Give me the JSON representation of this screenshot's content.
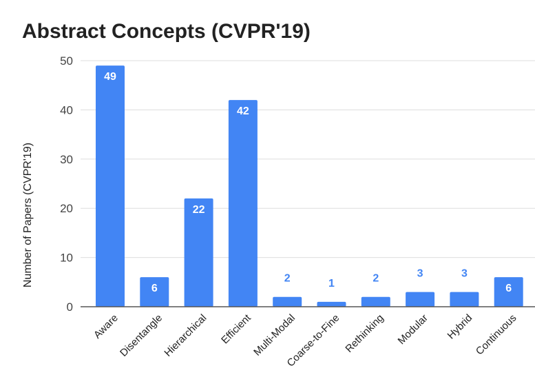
{
  "chart_data": {
    "type": "bar",
    "title": "Abstract Concepts (CVPR'19)",
    "xlabel": "",
    "ylabel": "Number of Papers (CVPR'19)",
    "ylim": [
      0,
      50
    ],
    "yticks": [
      "0",
      "10",
      "20",
      "30",
      "40",
      "50"
    ],
    "categories": [
      "Aware",
      "Disentangle",
      "Hierarchical",
      "Efficient",
      "Multi-Modal",
      "Coarse-to-Fine",
      "Rethinking",
      "Modular",
      "Hybrid",
      "Continuous"
    ],
    "values": [
      49,
      6,
      22,
      42,
      2,
      1,
      2,
      3,
      3,
      6
    ],
    "grid": true,
    "bar_color": "#4285f4",
    "label_color_inside": "#ffffff",
    "label_color_outside": "#4285f4"
  }
}
